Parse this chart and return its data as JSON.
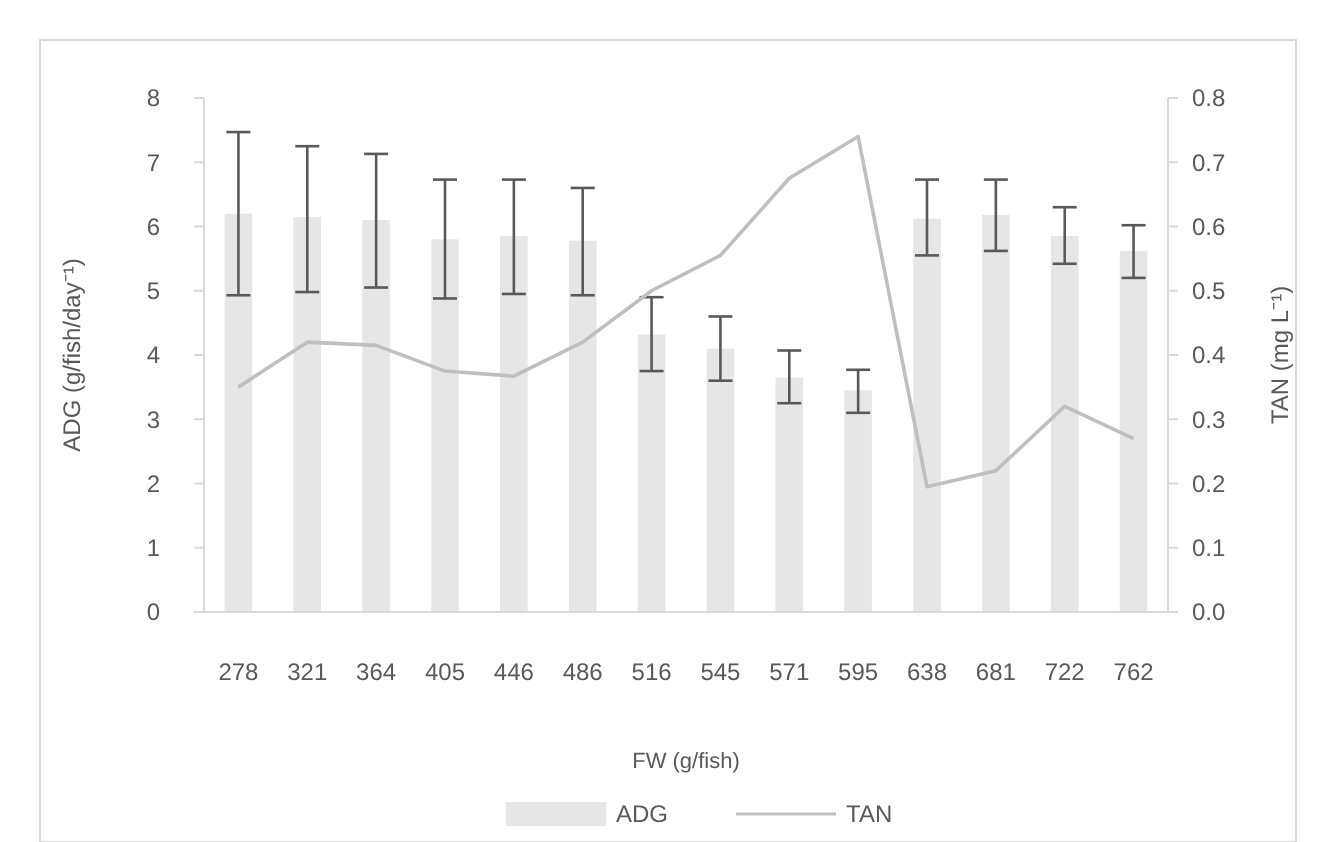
{
  "chart_data": {
    "type": "bar",
    "xlabel": "FW (g/fish)",
    "ylabel": "ADG (g/fish/day⁻¹)",
    "y2label": "TAN (mg L⁻¹)",
    "categories": [
      "278",
      "321",
      "364",
      "405",
      "446",
      "486",
      "516",
      "545",
      "571",
      "595",
      "638",
      "681",
      "722",
      "762"
    ],
    "series": [
      {
        "name": "ADG",
        "color": "#e6e6e6",
        "values": [
          6.2,
          6.15,
          6.1,
          5.8,
          5.85,
          5.78,
          4.32,
          4.1,
          3.65,
          3.45,
          6.12,
          6.18,
          5.85,
          5.62
        ],
        "errors": [
          [
            4.93,
            7.47
          ],
          [
            4.98,
            7.25
          ],
          [
            5.05,
            7.13
          ],
          [
            4.88,
            6.73
          ],
          [
            4.95,
            6.73
          ],
          [
            4.93,
            6.6
          ],
          [
            3.75,
            4.9
          ],
          [
            3.6,
            4.6
          ],
          [
            3.25,
            4.07
          ],
          [
            3.1,
            3.77
          ],
          [
            5.55,
            6.73
          ],
          [
            5.62,
            6.73
          ],
          [
            5.42,
            6.3
          ],
          [
            5.2,
            6.02
          ]
        ]
      },
      {
        "name": "TAN",
        "type": "line",
        "axis": "y2",
        "color": "#bfbfbf",
        "values": [
          0.35,
          0.42,
          0.415,
          0.375,
          0.367,
          0.42,
          0.5,
          0.555,
          0.675,
          0.74,
          0.195,
          0.22,
          0.32,
          0.27
        ]
      }
    ],
    "ylim": [
      0,
      8
    ],
    "yticks": [
      0,
      1,
      2,
      3,
      4,
      5,
      6,
      7,
      8
    ],
    "y2lim": [
      0,
      0.8
    ],
    "y2ticks": [
      {
        "value": 0,
        "label": "0.0"
      },
      0.1,
      0.2,
      0.3,
      0.4,
      0.5,
      0.6,
      0.7,
      0.8
    ],
    "grid": false,
    "legend": "bottom"
  }
}
